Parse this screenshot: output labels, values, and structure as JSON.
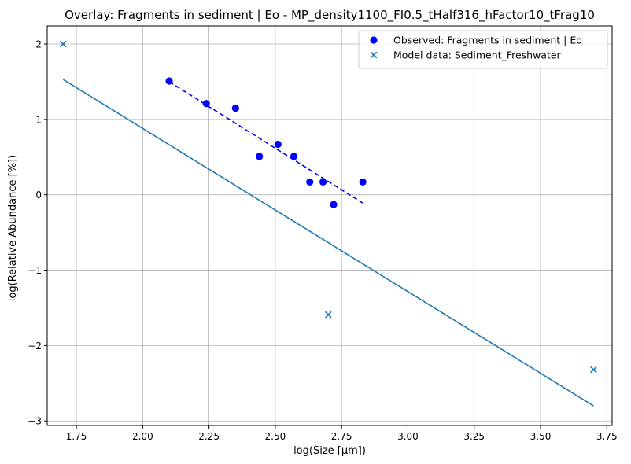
{
  "chart_data": {
    "type": "scatter",
    "title": "Overlay: Fragments in sediment | Eo - MP_density1100_FI0.5_tHalf316_hFactor10_tFrag10",
    "xlabel": "log(Size [μm])",
    "ylabel": "log(Relative Abundance [%])",
    "xlim": [
      1.64,
      3.77
    ],
    "ylim": [
      -3.06,
      2.24
    ],
    "xticks": [
      1.75,
      2.0,
      2.25,
      2.5,
      2.75,
      3.0,
      3.25,
      3.5,
      3.75
    ],
    "xtick_labels": [
      "1.75",
      "2.00",
      "2.25",
      "2.50",
      "2.75",
      "3.00",
      "3.25",
      "3.50",
      "3.75"
    ],
    "yticks": [
      -3,
      -2,
      -1,
      0,
      1,
      2
    ],
    "ytick_labels": [
      "−3",
      "−2",
      "−1",
      "0",
      "1",
      "2"
    ],
    "grid": true,
    "legend_position": "top-right",
    "series": [
      {
        "name": "Observed: Fragments in sediment | Eo",
        "kind": "scatter",
        "marker": "circle",
        "color": "#0000ff",
        "x": [
          2.1,
          2.24,
          2.35,
          2.44,
          2.51,
          2.57,
          2.63,
          2.68,
          2.72,
          2.83
        ],
        "y": [
          1.51,
          1.21,
          1.15,
          0.51,
          0.67,
          0.51,
          0.17,
          0.17,
          -0.13,
          0.17
        ]
      },
      {
        "name": "Model data: Sediment_Freshwater",
        "kind": "scatter",
        "marker": "x",
        "color": "#1f77b4",
        "x": [
          1.7,
          2.7,
          3.7
        ],
        "y": [
          2.0,
          -1.59,
          -2.32
        ]
      },
      {
        "kind": "line",
        "style": "dashed",
        "color": "#0000ff",
        "x": [
          2.1,
          2.83
        ],
        "y": [
          1.5,
          -0.11
        ]
      },
      {
        "kind": "line",
        "style": "solid",
        "color": "#1f77b4",
        "x": [
          1.7,
          3.7
        ],
        "y": [
          1.53,
          -2.8
        ]
      }
    ]
  }
}
